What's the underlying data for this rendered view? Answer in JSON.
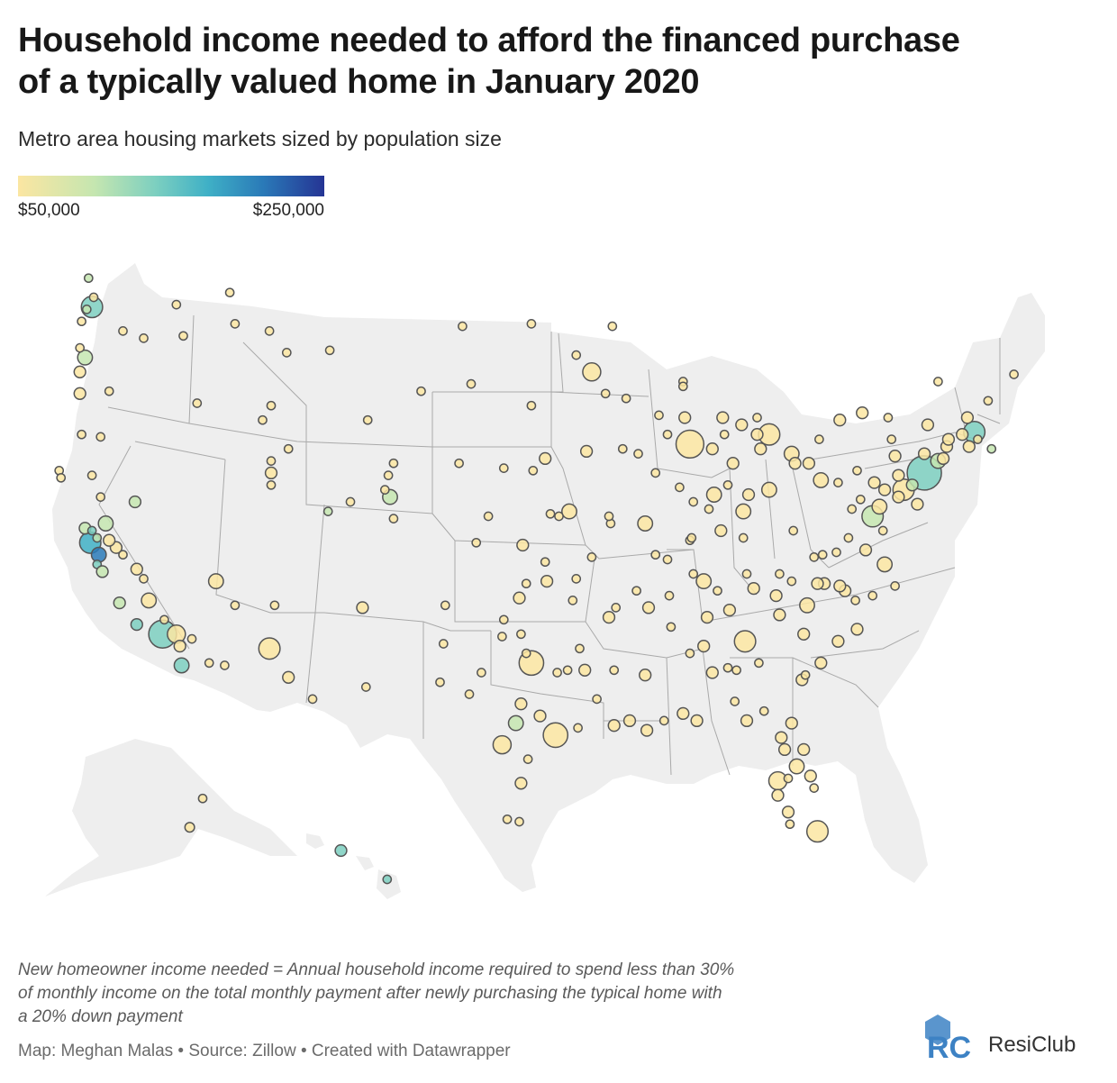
{
  "header": {
    "title_line1": "Household income needed to afford the financed purchase",
    "title_line2": "of a typically valued home in January 2020",
    "subtitle": "Metro area housing markets sized by population size"
  },
  "legend": {
    "min_label": "$50,000",
    "max_label": "$250,000",
    "min_value": 50000,
    "max_value": 250000,
    "colors": [
      "#fbe6a2",
      "#c5e6b0",
      "#7ccfc0",
      "#3fb0c6",
      "#2a7ab8",
      "#253494"
    ]
  },
  "notes": {
    "line1": "New homeowner income needed = Annual household income required to spend less than 30%",
    "line2": "of monthly income on the total monthly payment after newly purchasing the typical home with",
    "line3": "a 20% down payment"
  },
  "footer": {
    "credit": "Map: Meghan Malas • Source: Zillow • Created with Datawrapper"
  },
  "brand": {
    "name": "ResiClub",
    "icon": "resiclub-logo-icon",
    "color": "#3d82c4"
  },
  "map": {
    "land_color": "#eeeeee",
    "border_color": "#a9a9a9",
    "bubble_stroke": "#555555",
    "metros_note": "bubbles: [lon, lat, radius_scale, color_level 0-5]",
    "metros": [
      [
        -122.3,
        47.6,
        3,
        2
      ],
      [
        -122.7,
        45.5,
        2,
        1
      ],
      [
        -117.4,
        47.7,
        1,
        0
      ],
      [
        -116.2,
        43.6,
        1,
        0
      ],
      [
        -111.9,
        40.7,
        1.5,
        0
      ],
      [
        -111.9,
        40.2,
        1,
        0
      ],
      [
        -111.9,
        41.2,
        1,
        0
      ],
      [
        -112.0,
        33.4,
        3,
        0
      ],
      [
        -110.9,
        32.2,
        1.5,
        0
      ],
      [
        -115.1,
        36.2,
        2,
        0
      ],
      [
        -118.2,
        34.0,
        4,
        2
      ],
      [
        -117.4,
        34.0,
        2.5,
        0
      ],
      [
        -117.1,
        32.7,
        2,
        2
      ],
      [
        -119.7,
        36.7,
        1.5,
        0
      ],
      [
        -121.5,
        38.6,
        2,
        1
      ],
      [
        -122.4,
        37.8,
        3,
        3
      ],
      [
        -121.9,
        37.3,
        2,
        4
      ],
      [
        -122.0,
        36.9,
        1,
        2
      ],
      [
        -105.0,
        39.7,
        2,
        1
      ],
      [
        -104.8,
        38.8,
        1,
        0
      ],
      [
        -105.1,
        40.6,
        1,
        0
      ],
      [
        -106.6,
        35.1,
        1.5,
        0
      ],
      [
        -106.4,
        31.8,
        1,
        0
      ],
      [
        -97.7,
        30.3,
        2,
        1
      ],
      [
        -96.8,
        32.8,
        3.5,
        0
      ],
      [
        -95.4,
        29.8,
        3.5,
        0
      ],
      [
        -98.5,
        29.4,
        2.5,
        0
      ],
      [
        -97.5,
        35.5,
        1.5,
        0
      ],
      [
        -95.9,
        36.2,
        1.5,
        0
      ],
      [
        -94.6,
        39.1,
        2,
        0
      ],
      [
        -90.2,
        38.6,
        2,
        0
      ],
      [
        -93.3,
        44.9,
        2.5,
        0
      ],
      [
        -87.6,
        41.9,
        4,
        0
      ],
      [
        -86.2,
        39.8,
        2,
        0
      ],
      [
        -84.5,
        39.1,
        2,
        0
      ],
      [
        -83.0,
        40.0,
        2,
        0
      ],
      [
        -83.0,
        42.3,
        3,
        0
      ],
      [
        -81.7,
        41.5,
        2,
        0
      ],
      [
        -80.0,
        40.4,
        2,
        0
      ],
      [
        -84.4,
        33.7,
        3,
        0
      ],
      [
        -80.8,
        35.2,
        2,
        0
      ],
      [
        -78.6,
        35.8,
        1.5,
        0
      ],
      [
        -86.8,
        36.2,
        2,
        0
      ],
      [
        -90.0,
        35.1,
        1.5,
        0
      ],
      [
        -86.8,
        33.5,
        1.5,
        0
      ],
      [
        -81.4,
        28.5,
        2,
        0
      ],
      [
        -82.5,
        27.9,
        2.5,
        0
      ],
      [
        -80.2,
        25.8,
        3,
        0
      ],
      [
        -81.7,
        30.3,
        1.5,
        0
      ],
      [
        -90.1,
        30.0,
        1.5,
        0
      ],
      [
        -77.0,
        38.9,
        3,
        1
      ],
      [
        -76.6,
        39.3,
        2,
        0
      ],
      [
        -75.2,
        40.0,
        3,
        0
      ],
      [
        -74.0,
        40.7,
        5,
        2
      ],
      [
        -71.1,
        42.4,
        3,
        2
      ],
      [
        -71.4,
        41.8,
        1.5,
        0
      ],
      [
        -72.7,
        41.8,
        1.5,
        0
      ],
      [
        -73.8,
        42.7,
        1.5,
        0
      ],
      [
        -78.9,
        42.9,
        1.5,
        0
      ],
      [
        -77.6,
        43.2,
        1.5,
        0
      ],
      [
        -76.1,
        43.0,
        1,
        0
      ],
      [
        -77.4,
        37.5,
        1.5,
        0
      ],
      [
        -76.3,
        36.9,
        2,
        0
      ],
      [
        -84.5,
        38.0,
        1,
        0
      ],
      [
        -85.8,
        38.3,
        1.5,
        0
      ],
      [
        -85.7,
        43.0,
        1.5,
        0
      ],
      [
        -89.4,
        43.1,
        1,
        0
      ],
      [
        -87.9,
        43.0,
        1.5,
        0
      ],
      [
        -96.0,
        41.3,
        1.5,
        0
      ],
      [
        -97.3,
        37.7,
        1.5,
        0
      ],
      [
        -101.8,
        35.2,
        1,
        0
      ],
      [
        -101.9,
        33.6,
        1,
        0
      ],
      [
        -102.1,
        32.0,
        1,
        0
      ],
      [
        -100.4,
        31.5,
        1,
        0
      ],
      [
        -97.4,
        27.8,
        1.5,
        0
      ],
      [
        -97.5,
        26.2,
        1,
        0
      ],
      [
        -98.2,
        26.3,
        1,
        0
      ],
      [
        -94.1,
        30.1,
        1,
        0
      ],
      [
        -93.7,
        32.5,
        1.5,
        0
      ],
      [
        -92.3,
        34.7,
        1.5,
        0
      ],
      [
        -94.2,
        36.3,
        1,
        0
      ],
      [
        -93.3,
        37.2,
        1,
        0
      ],
      [
        -92.2,
        38.6,
        1,
        0
      ],
      [
        -91.5,
        41.7,
        1,
        0
      ],
      [
        -93.6,
        41.6,
        1.5,
        0
      ],
      [
        -90.6,
        41.5,
        1,
        0
      ],
      [
        -89.6,
        40.7,
        1,
        0
      ],
      [
        -88.2,
        40.1,
        1,
        0
      ],
      [
        -87.6,
        37.9,
        1,
        0
      ],
      [
        -88.9,
        42.3,
        1,
        0
      ],
      [
        -88.0,
        44.5,
        1,
        0
      ],
      [
        -92.1,
        46.8,
        1,
        0
      ],
      [
        -96.8,
        43.5,
        1,
        0
      ],
      [
        -96.8,
        46.9,
        1,
        0
      ],
      [
        -100.8,
        46.8,
        1,
        0
      ],
      [
        -103.2,
        44.1,
        1,
        0
      ],
      [
        -106.3,
        42.9,
        1,
        0
      ],
      [
        -104.8,
        41.1,
        1,
        0
      ],
      [
        -108.5,
        45.8,
        1,
        0
      ],
      [
        -111.0,
        45.7,
        1,
        0
      ],
      [
        -112.0,
        46.6,
        1,
        0
      ],
      [
        -114.0,
        46.9,
        1,
        0
      ],
      [
        -114.3,
        48.2,
        1,
        0
      ],
      [
        -112.4,
        42.9,
        1,
        0
      ],
      [
        -111.9,
        43.5,
        1,
        0
      ],
      [
        -119.8,
        39.5,
        1.5,
        1
      ],
      [
        -121.3,
        44.1,
        1,
        0
      ],
      [
        -123.0,
        44.0,
        1.5,
        0
      ],
      [
        -123.0,
        44.9,
        1.5,
        0
      ],
      [
        -124.2,
        40.8,
        1,
        0
      ],
      [
        -122.3,
        40.6,
        1,
        0
      ],
      [
        -121.8,
        39.7,
        1,
        0
      ],
      [
        -120.7,
        35.3,
        1.5,
        1
      ],
      [
        -119.7,
        34.4,
        1.5,
        2
      ],
      [
        -119.0,
        35.4,
        2,
        0
      ],
      [
        -114.6,
        32.7,
        1,
        0
      ],
      [
        -115.5,
        32.8,
        1,
        0
      ],
      [
        -117.2,
        33.5,
        1.5,
        0
      ],
      [
        -111.7,
        35.2,
        1,
        0
      ],
      [
        -114.0,
        35.2,
        1,
        0
      ],
      [
        -109.5,
        31.3,
        1,
        0
      ],
      [
        -84.3,
        30.4,
        1.5,
        0
      ],
      [
        -87.2,
        30.4,
        1.5,
        0
      ],
      [
        -88.0,
        30.7,
        1.5,
        0
      ],
      [
        -86.3,
        32.4,
        1.5,
        0
      ],
      [
        -85.4,
        32.6,
        1,
        0
      ],
      [
        -84.9,
        32.5,
        1,
        0
      ],
      [
        -83.6,
        32.8,
        1,
        0
      ],
      [
        -81.1,
        32.1,
        1.5,
        0
      ],
      [
        -80.0,
        32.8,
        1.5,
        0
      ],
      [
        -81.0,
        34.0,
        1.5,
        0
      ],
      [
        -82.4,
        34.8,
        1.5,
        0
      ],
      [
        -82.6,
        35.6,
        1.5,
        0
      ],
      [
        -79.8,
        36.1,
        1.5,
        0
      ],
      [
        -80.2,
        36.1,
        1.5,
        0
      ],
      [
        -79.9,
        37.3,
        1,
        0
      ],
      [
        -78.9,
        36.0,
        1.5,
        0
      ],
      [
        -77.9,
        34.2,
        1.5,
        0
      ],
      [
        -75.7,
        36.0,
        1,
        0
      ],
      [
        -83.9,
        35.9,
        1.5,
        0
      ],
      [
        -85.3,
        35.0,
        1.5,
        0
      ],
      [
        -82.4,
        36.5,
        1,
        0
      ],
      [
        -81.6,
        38.3,
        1,
        0
      ],
      [
        -79.0,
        40.3,
        1,
        0
      ],
      [
        -77.9,
        40.8,
        1,
        0
      ],
      [
        -76.9,
        40.3,
        1.5,
        0
      ],
      [
        -76.3,
        40.0,
        1.5,
        0
      ],
      [
        -75.5,
        40.6,
        1.5,
        0
      ],
      [
        -75.7,
        41.4,
        1.5,
        0
      ],
      [
        -74.7,
        40.2,
        1.5,
        1
      ],
      [
        -74.4,
        39.4,
        1.5,
        0
      ],
      [
        -75.5,
        39.7,
        1.5,
        0
      ],
      [
        -73.2,
        41.2,
        2,
        1
      ],
      [
        -72.9,
        41.3,
        1.5,
        0
      ],
      [
        -72.6,
        42.1,
        1.5,
        0
      ],
      [
        -71.8,
        42.3,
        1.5,
        0
      ],
      [
        -70.9,
        42.1,
        1,
        0
      ],
      [
        -70.3,
        43.7,
        1,
        0
      ],
      [
        -71.5,
        43.0,
        1.5,
        0
      ],
      [
        -73.2,
        44.5,
        1,
        0
      ],
      [
        -68.8,
        44.8,
        1,
        0
      ],
      [
        -70.1,
        41.7,
        1,
        1
      ],
      [
        -74.0,
        41.5,
        1.5,
        0
      ],
      [
        -75.9,
        42.1,
        1,
        0
      ],
      [
        -80.1,
        42.1,
        1,
        0
      ],
      [
        -80.7,
        41.1,
        1.5,
        0
      ],
      [
        -81.5,
        41.1,
        1.5,
        0
      ],
      [
        -83.5,
        41.7,
        1.5,
        0
      ],
      [
        -84.2,
        39.8,
        1.5,
        0
      ],
      [
        -83.7,
        42.3,
        1.5,
        0
      ],
      [
        -84.6,
        42.7,
        1.5,
        0
      ],
      [
        -83.7,
        43.0,
        1,
        0
      ],
      [
        -85.6,
        42.3,
        1,
        0
      ],
      [
        -86.3,
        41.7,
        1.5,
        0
      ],
      [
        -85.1,
        41.1,
        1.5,
        0
      ],
      [
        -87.5,
        38.0,
        1,
        0
      ],
      [
        -86.5,
        39.2,
        1,
        0
      ],
      [
        -87.4,
        39.5,
        1,
        0
      ],
      [
        -85.4,
        40.2,
        1,
        0
      ],
      [
        -88.0,
        44.3,
        1,
        0
      ],
      [
        -91.3,
        43.8,
        1,
        0
      ],
      [
        -92.5,
        44.0,
        1,
        0
      ],
      [
        -94.2,
        45.6,
        1,
        0
      ],
      [
        -96.7,
        40.8,
        1,
        0
      ],
      [
        -98.4,
        40.9,
        1,
        0
      ],
      [
        -95.7,
        39.0,
        1,
        0
      ],
      [
        -95.2,
        38.9,
        1,
        0
      ],
      [
        -92.3,
        38.9,
        1,
        0
      ],
      [
        -91.9,
        35.1,
        1,
        0
      ],
      [
        -94.4,
        35.4,
        1,
        0
      ],
      [
        -92.0,
        32.5,
        1,
        0
      ],
      [
        -93.0,
        31.3,
        1,
        0
      ],
      [
        -92.0,
        30.2,
        1.5,
        0
      ],
      [
        -91.1,
        30.4,
        1.5,
        0
      ],
      [
        -89.1,
        30.4,
        1,
        0
      ],
      [
        -90.2,
        32.3,
        1.5,
        0
      ],
      [
        -88.7,
        34.3,
        1,
        0
      ],
      [
        -88.8,
        35.6,
        1,
        0
      ],
      [
        -87.4,
        36.5,
        1,
        0
      ],
      [
        -86.6,
        34.7,
        1.5,
        0
      ],
      [
        -87.6,
        33.2,
        1,
        0
      ],
      [
        -85.0,
        31.2,
        1,
        0
      ],
      [
        -83.3,
        30.8,
        1,
        0
      ],
      [
        -82.3,
        29.7,
        1.5,
        0
      ],
      [
        -82.1,
        29.2,
        1.5,
        0
      ],
      [
        -80.6,
        28.1,
        1.5,
        0
      ],
      [
        -81.0,
        29.2,
        1.5,
        0
      ],
      [
        -80.4,
        27.6,
        1,
        0
      ],
      [
        -81.9,
        26.6,
        1.5,
        0
      ],
      [
        -81.8,
        26.1,
        1,
        0
      ],
      [
        -82.5,
        27.3,
        1.5,
        0
      ],
      [
        -81.9,
        28.0,
        1,
        0
      ],
      [
        -80.9,
        32.3,
        1,
        0
      ],
      [
        -79.0,
        33.7,
        1.5,
        0
      ],
      [
        -78.0,
        35.4,
        1,
        0
      ],
      [
        -77.0,
        35.6,
        1,
        0
      ],
      [
        -76.4,
        38.3,
        1,
        0
      ],
      [
        -78.2,
        39.2,
        1,
        0
      ],
      [
        -77.7,
        39.6,
        1,
        0
      ],
      [
        -78.4,
        38.0,
        1,
        0
      ],
      [
        -79.1,
        37.4,
        1,
        0
      ],
      [
        -80.4,
        37.2,
        1,
        0
      ],
      [
        -81.7,
        36.2,
        1,
        0
      ],
      [
        -84.3,
        36.5,
        1,
        0
      ],
      [
        -86.0,
        35.8,
        1,
        0
      ],
      [
        -88.9,
        37.1,
        1,
        0
      ],
      [
        -89.6,
        37.3,
        1,
        0
      ],
      [
        -90.7,
        35.8,
        1,
        0
      ],
      [
        -97.1,
        33.2,
        1,
        0
      ],
      [
        -97.4,
        31.1,
        1.5,
        0
      ],
      [
        -96.3,
        30.6,
        1.5,
        0
      ],
      [
        -95.3,
        32.4,
        1,
        0
      ],
      [
        -94.7,
        32.5,
        1,
        0
      ],
      [
        -94.0,
        33.4,
        1,
        0
      ],
      [
        -98.5,
        33.9,
        1,
        0
      ],
      [
        -99.7,
        32.4,
        1,
        0
      ],
      [
        -97.0,
        28.8,
        1,
        0
      ],
      [
        -97.4,
        34.0,
        1,
        0
      ],
      [
        -98.4,
        34.6,
        1,
        0
      ],
      [
        -97.1,
        36.1,
        1,
        0
      ],
      [
        -96.0,
        37.0,
        1,
        0
      ],
      [
        -99.3,
        38.9,
        1,
        0
      ],
      [
        -100.0,
        37.8,
        1,
        0
      ],
      [
        -101.0,
        41.1,
        1,
        0
      ],
      [
        -100.3,
        44.4,
        1,
        0
      ],
      [
        -108.6,
        39.1,
        1,
        1
      ],
      [
        -107.3,
        39.5,
        1,
        0
      ],
      [
        -105.3,
        40.0,
        1,
        0
      ],
      [
        -110.9,
        41.7,
        1,
        0
      ],
      [
        -117.0,
        46.4,
        1,
        0
      ],
      [
        -119.3,
        46.3,
        1,
        0
      ],
      [
        -120.5,
        46.6,
        1,
        0
      ],
      [
        -122.5,
        48.8,
        1,
        1
      ],
      [
        -122.9,
        47.0,
        1,
        0
      ],
      [
        -122.2,
        48.0,
        1,
        0
      ],
      [
        -122.6,
        47.5,
        1,
        1
      ],
      [
        -123.0,
        45.9,
        1,
        0
      ],
      [
        -122.9,
        42.3,
        1,
        0
      ],
      [
        -121.8,
        42.2,
        1,
        0
      ],
      [
        -124.1,
        40.5,
        1,
        0
      ],
      [
        -120.9,
        37.6,
        1.5,
        0
      ],
      [
        -121.3,
        37.9,
        1.5,
        0
      ],
      [
        -120.5,
        37.3,
        1,
        0
      ],
      [
        -122.7,
        38.4,
        1.5,
        1
      ],
      [
        -122.3,
        38.3,
        1,
        2
      ],
      [
        -122.0,
        38.0,
        1,
        1
      ],
      [
        -119.3,
        36.3,
        1,
        0
      ],
      [
        -121.7,
        36.6,
        1.5,
        1
      ],
      [
        -118.1,
        34.6,
        1,
        0
      ],
      [
        -116.5,
        33.8,
        1,
        0
      ]
    ]
  },
  "extras": {
    "alaska": [
      [
        -149.9,
        61.2,
        1.2,
        0
      ],
      [
        -147.7,
        64.8,
        1,
        0
      ]
    ],
    "hawaii": [
      [
        -157.9,
        21.3,
        1.5,
        2
      ],
      [
        -155.1,
        19.7,
        1,
        2
      ]
    ]
  }
}
